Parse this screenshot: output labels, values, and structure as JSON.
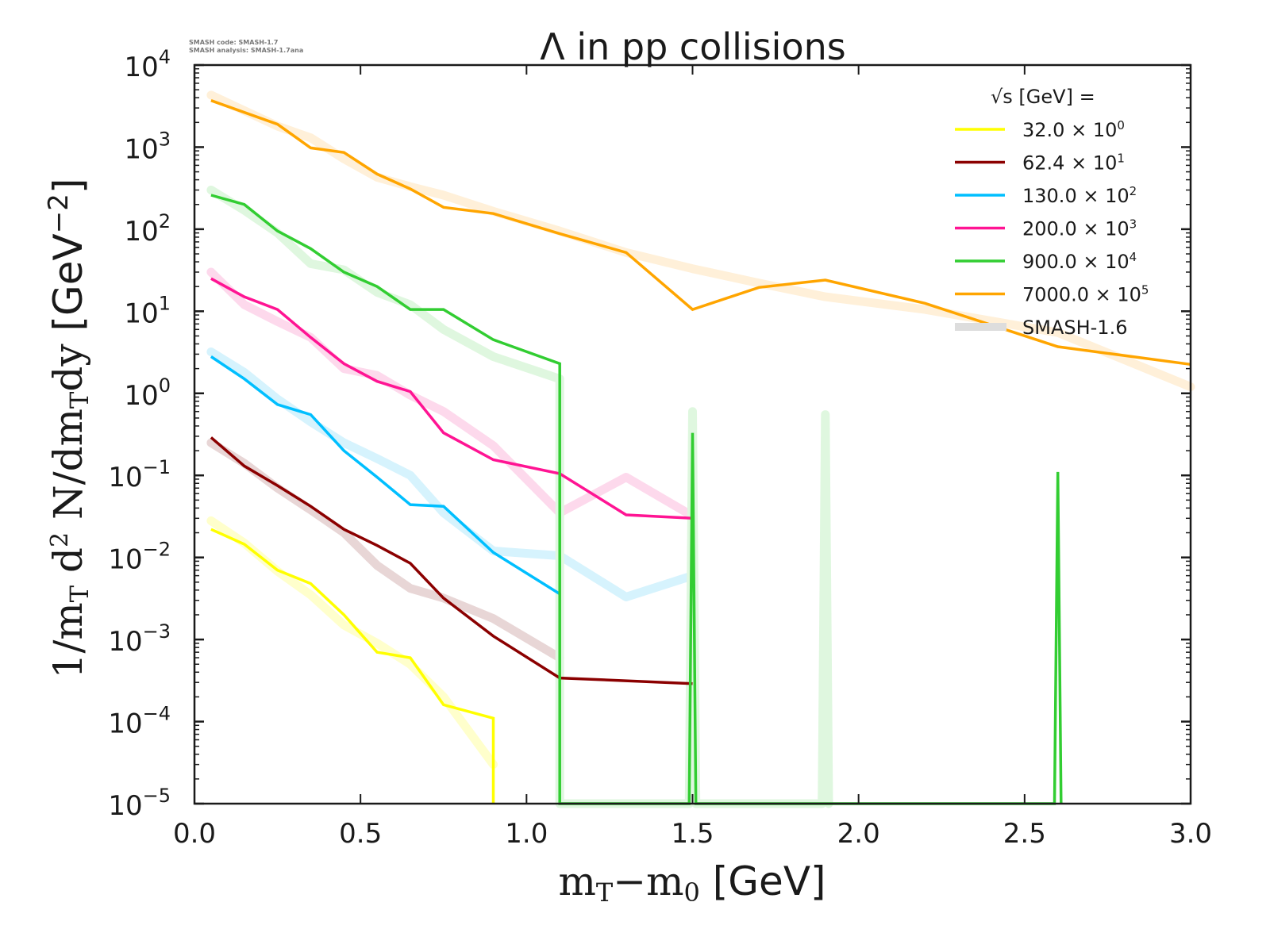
{
  "chart_data": {
    "type": "line",
    "title": "Λ in pp collisions",
    "xlabel": "mT−m0 [GeV]",
    "ylabel": "1/mT d² N/dmTdy [GeV⁻²]",
    "xlim": [
      0.0,
      3.0
    ],
    "ylim": [
      1e-05,
      10000.0
    ],
    "yscale": "log",
    "grid": false,
    "x_ticks": [
      "0.0",
      "0.5",
      "1.0",
      "1.5",
      "2.0",
      "2.5",
      "3.0"
    ],
    "y_ticks": [
      {
        "base": "10",
        "exp": "4"
      },
      {
        "base": "10",
        "exp": "3"
      },
      {
        "base": "10",
        "exp": "2"
      },
      {
        "base": "10",
        "exp": "1"
      },
      {
        "base": "10",
        "exp": "0"
      },
      {
        "base": "10",
        "exp": "−1"
      },
      {
        "base": "10",
        "exp": "−2"
      },
      {
        "base": "10",
        "exp": "−3"
      },
      {
        "base": "10",
        "exp": "−4"
      },
      {
        "base": "10",
        "exp": "−5"
      }
    ],
    "meta_text": [
      "SMASH code:      SMASH-1.7",
      "SMASH analysis: SMASH-1.7ana"
    ],
    "legend": {
      "title": "√s  [GeV] =",
      "placement": "top-right",
      "reference_label": "SMASH-1.6",
      "reference_color": "#dddddd"
    },
    "series": [
      {
        "name": "32.0 × 10⁰",
        "label": "32.0",
        "scale": "× 10",
        "scale_exp": "0",
        "color": "#ffff00",
        "ref_color": "#ffffcc",
        "x": [
          0.05,
          0.15,
          0.25,
          0.35,
          0.45,
          0.55,
          0.65,
          0.75,
          0.9,
          0.9
        ],
        "values": [
          0.022,
          0.0145,
          0.007,
          0.0048,
          0.002,
          0.0007,
          0.0006,
          0.00016,
          0.00011,
          1e-05
        ],
        "ref_x": [
          0.05,
          0.15,
          0.25,
          0.35,
          0.45,
          0.55,
          0.65,
          0.75,
          0.9
        ],
        "ref_values": [
          0.028,
          0.015,
          0.0068,
          0.0035,
          0.0015,
          0.0009,
          0.0005,
          0.0002,
          3e-05
        ]
      },
      {
        "name": "62.4 × 10¹",
        "label": "62.4",
        "scale": "× 10",
        "scale_exp": "1",
        "color": "#8b0000",
        "ref_color": "#e8d6d6",
        "x": [
          0.05,
          0.15,
          0.25,
          0.35,
          0.45,
          0.55,
          0.65,
          0.75,
          0.9,
          1.1,
          1.5
        ],
        "values": [
          0.29,
          0.13,
          0.075,
          0.042,
          0.022,
          0.014,
          0.0085,
          0.0032,
          0.0011,
          0.00034,
          0.00029
        ],
        "ref_x": [
          0.05,
          0.15,
          0.25,
          0.35,
          0.45,
          0.55,
          0.65,
          0.75,
          0.9,
          1.1
        ],
        "ref_values": [
          0.25,
          0.14,
          0.07,
          0.038,
          0.02,
          0.008,
          0.0042,
          0.0032,
          0.0018,
          0.0006
        ]
      },
      {
        "name": "130.0 × 10²",
        "label": "130.0",
        "scale": "× 10",
        "scale_exp": "2",
        "color": "#00bfff",
        "ref_color": "#d6f3fd",
        "x": [
          0.05,
          0.15,
          0.25,
          0.35,
          0.45,
          0.55,
          0.65,
          0.75,
          0.9,
          1.1
        ],
        "values": [
          2.8,
          1.5,
          0.73,
          0.55,
          0.2,
          0.095,
          0.044,
          0.042,
          0.0115,
          0.0036
        ],
        "ref_x": [
          0.05,
          0.15,
          0.25,
          0.35,
          0.45,
          0.55,
          0.65,
          0.75,
          0.9,
          1.1,
          1.3,
          1.5
        ],
        "ref_values": [
          3.2,
          1.8,
          0.85,
          0.45,
          0.25,
          0.16,
          0.1,
          0.035,
          0.012,
          0.0105,
          0.0033,
          0.006
        ]
      },
      {
        "name": "200.0 × 10³",
        "label": "200.0",
        "scale": "× 10",
        "scale_exp": "3",
        "color": "#ff1493",
        "ref_color": "#fdd9ec",
        "x": [
          0.05,
          0.15,
          0.25,
          0.35,
          0.45,
          0.55,
          0.65,
          0.75,
          0.9,
          1.1,
          1.3,
          1.5
        ],
        "values": [
          25,
          15,
          10.5,
          4.8,
          2.3,
          1.4,
          1.05,
          0.33,
          0.155,
          0.105,
          0.033,
          0.03
        ],
        "ref_x": [
          0.05,
          0.15,
          0.25,
          0.35,
          0.45,
          0.55,
          0.65,
          0.75,
          0.9,
          1.1,
          1.3,
          1.5
        ],
        "ref_values": [
          30,
          12,
          7.5,
          4.8,
          2.0,
          1.65,
          0.95,
          0.6,
          0.23,
          0.035,
          0.095,
          0.032
        ]
      },
      {
        "name": "900.0 × 10⁴",
        "label": "900.0",
        "scale": "× 10",
        "scale_exp": "4",
        "color": "#32cd32",
        "ref_color": "#dff7df",
        "x": [
          0.05,
          0.15,
          0.25,
          0.35,
          0.45,
          0.55,
          0.65,
          0.75,
          0.9,
          1.1,
          1.1,
          1.49,
          1.5,
          1.51,
          2.59,
          2.6,
          2.61
        ],
        "values": [
          260,
          200,
          95,
          58,
          30,
          20,
          10.5,
          10.5,
          4.5,
          2.3,
          1e-05,
          1e-05,
          0.33,
          1e-05,
          1e-05,
          0.11,
          1e-05
        ],
        "ref_x": [
          0.05,
          0.15,
          0.25,
          0.35,
          0.45,
          0.55,
          0.65,
          0.75,
          0.9,
          1.1,
          1.1,
          1.49,
          1.5,
          1.51,
          1.89,
          1.9,
          1.91
        ],
        "ref_values": [
          300,
          170,
          90,
          38,
          32,
          17,
          12,
          6,
          2.8,
          1.5,
          1e-05,
          1e-05,
          0.6,
          1e-05,
          1e-05,
          0.55,
          1e-05
        ]
      },
      {
        "name": "7000.0 × 10⁵",
        "label": "7000.0",
        "scale": "× 10",
        "scale_exp": "5",
        "color": "#ffa500",
        "ref_color": "#fff0d9",
        "x": [
          0.05,
          0.25,
          0.35,
          0.45,
          0.55,
          0.65,
          0.75,
          0.9,
          1.1,
          1.3,
          1.5,
          1.7,
          1.9,
          2.2,
          2.6,
          3.0
        ],
        "values": [
          3700,
          1900,
          980,
          860,
          470,
          310,
          185,
          155,
          88,
          52,
          10.5,
          19.5,
          24,
          12.5,
          3.7,
          2.25
        ],
        "ref_x": [
          0.05,
          0.25,
          0.35,
          0.45,
          0.55,
          0.65,
          0.75,
          0.9,
          1.1,
          1.3,
          1.5,
          1.7,
          1.9,
          2.2,
          2.6,
          3.0
        ],
        "ref_values": [
          4300,
          1800,
          1300,
          720,
          430,
          330,
          260,
          165,
          95,
          52,
          33,
          22,
          15,
          10.5,
          5.5,
          1.2
        ]
      }
    ]
  }
}
